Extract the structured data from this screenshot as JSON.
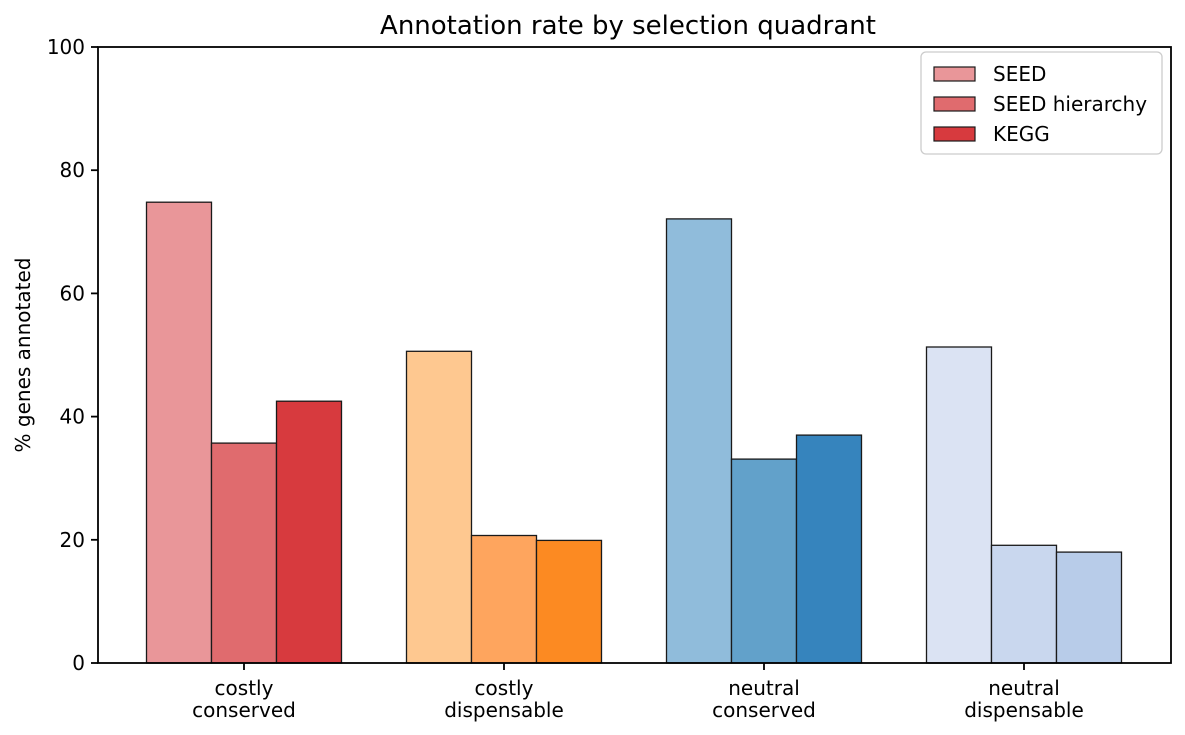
{
  "figure": {
    "background": "#ffffff"
  },
  "chart_data": {
    "type": "bar",
    "title": "Annotation rate by selection quadrant",
    "xlabel": "",
    "ylabel": "% genes annotated",
    "ylim": [
      0,
      100
    ],
    "yticks": [
      0,
      20,
      40,
      60,
      80,
      100
    ],
    "ytick_labels": [
      "0",
      "20",
      "40",
      "60",
      "80",
      "100"
    ],
    "grid": false,
    "categories": [
      "costly\nconserved",
      "costly\ndispensable",
      "neutral\nconserved",
      "neutral\ndispensable"
    ],
    "series": [
      {
        "name": "SEED",
        "values": [
          74.8,
          50.6,
          72.1,
          51.3
        ]
      },
      {
        "name": "SEED hierarchy",
        "values": [
          35.7,
          20.7,
          33.1,
          19.1
        ]
      },
      {
        "name": "KEGG",
        "values": [
          42.5,
          19.9,
          37.0,
          18.0
        ]
      }
    ],
    "group_colors": [
      [
        "#e99699",
        "#e06b6e",
        "#d73a3e"
      ],
      [
        "#fec890",
        "#fea55e",
        "#fc8a22"
      ],
      [
        "#90bcdb",
        "#62a1ca",
        "#3684bd"
      ],
      [
        "#dbe3f3",
        "#c9d7ee",
        "#b8cce9"
      ]
    ],
    "bar_edge_color": "#1a1a1a",
    "axis_color": "#000000",
    "legend": {
      "position": "upper right",
      "entries": [
        {
          "label": "SEED",
          "color": "#e99699"
        },
        {
          "label": "SEED hierarchy",
          "color": "#e06b6e"
        },
        {
          "label": "KEGG",
          "color": "#d73a3e"
        }
      ],
      "border_color": "#cccccc",
      "background": "#ffffff"
    }
  }
}
